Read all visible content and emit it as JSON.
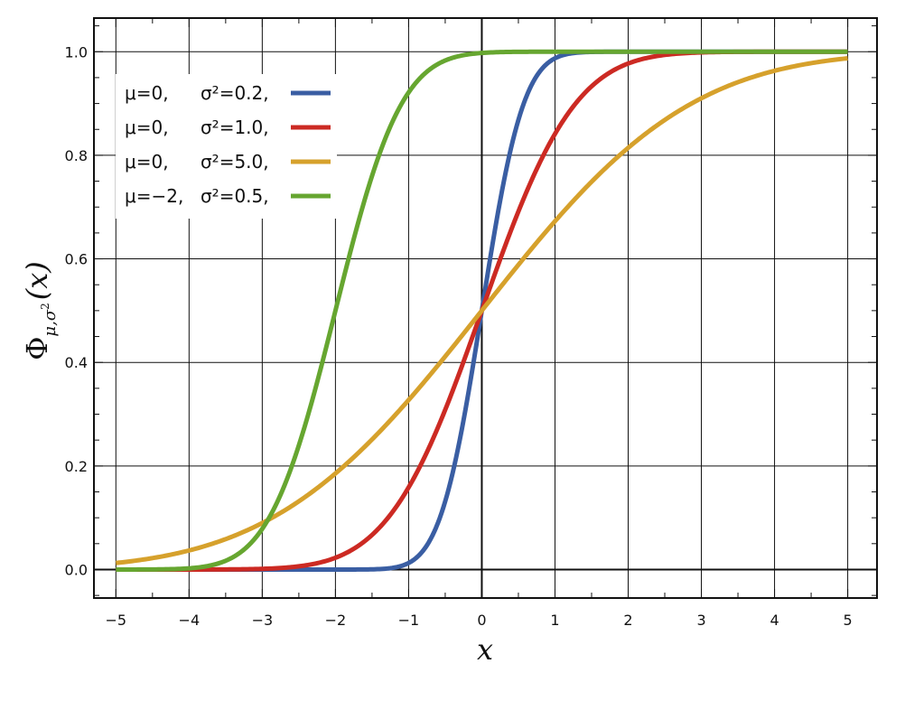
{
  "chart_data": {
    "type": "line",
    "title": "",
    "xlabel": "x",
    "ylabel": "Φμ,σ²(x)",
    "ylabel_parts": {
      "main": "Φ",
      "sub": "μ,σ",
      "sup": "2",
      "arg": "(x)"
    },
    "xlim": [
      -5.3,
      5.4
    ],
    "ylim": [
      -0.055,
      1.065
    ],
    "xticks": [
      -5,
      -4,
      -3,
      -2,
      -1,
      0,
      1,
      2,
      3,
      4,
      5
    ],
    "xtick_labels": [
      "−5",
      "−4",
      "−3",
      "−2",
      "−1",
      "0",
      "1",
      "2",
      "3",
      "4",
      "5"
    ],
    "yticks": [
      0.0,
      0.2,
      0.4,
      0.6,
      0.8,
      1.0
    ],
    "ytick_labels": [
      "0.0",
      "0.2",
      "0.4",
      "0.6",
      "0.8",
      "1.0"
    ],
    "grid": true,
    "legend_position": "top-left",
    "series": [
      {
        "name": "μ=0,   σ²=0.2,",
        "mu_label": "μ=0,",
        "sigma_label": "σ²=0.2,",
        "mu": 0,
        "sigma2": 0.2,
        "color": "#3a5ea3"
      },
      {
        "name": "μ=0,   σ²=1.0,",
        "mu_label": "μ=0,",
        "sigma_label": "σ²=1.0,",
        "mu": 0,
        "sigma2": 1.0,
        "color": "#cc2a23"
      },
      {
        "name": "μ=0,   σ²=5.0,",
        "mu_label": "μ=0,",
        "sigma_label": "σ²=5.0,",
        "mu": 0,
        "sigma2": 5.0,
        "color": "#d6a12c"
      },
      {
        "name": "μ=−2, σ²=0.5,",
        "mu_label": "μ=−2,",
        "sigma_label": "σ²=0.5,",
        "mu": -2,
        "sigma2": 0.5,
        "color": "#66a630"
      }
    ]
  }
}
